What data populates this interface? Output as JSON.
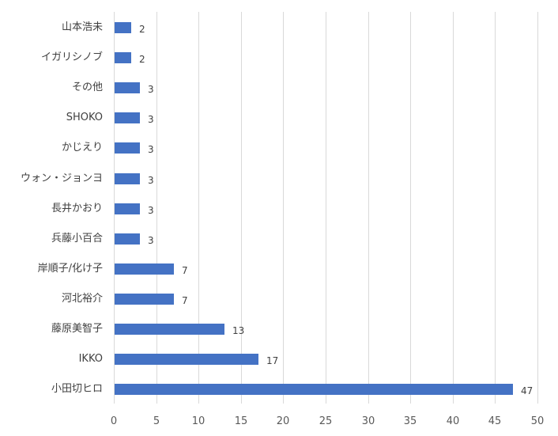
{
  "chart_data": {
    "type": "bar",
    "orientation": "horizontal",
    "title": "",
    "xlabel": "",
    "ylabel": "",
    "categories": [
      "山本浩未",
      "イガリシノブ",
      "その他",
      "SHOKO",
      "かじえり",
      "ウォン・ジョンヨ",
      "長井かおり",
      "兵藤小百合",
      "岸順子/化け子",
      "河北裕介",
      "藤原美智子",
      "IKKO",
      "小田切ヒロ"
    ],
    "values": [
      2,
      2,
      3,
      3,
      3,
      3,
      3,
      3,
      7,
      7,
      13,
      17,
      47
    ],
    "xlim": [
      0,
      50
    ],
    "xticks": [
      "0",
      "5",
      "10",
      "15",
      "20",
      "25",
      "30",
      "35",
      "40",
      "45",
      "50"
    ],
    "grid": "vertical",
    "legend": "none",
    "data_labels": true,
    "bar_color": "#4472c4"
  }
}
